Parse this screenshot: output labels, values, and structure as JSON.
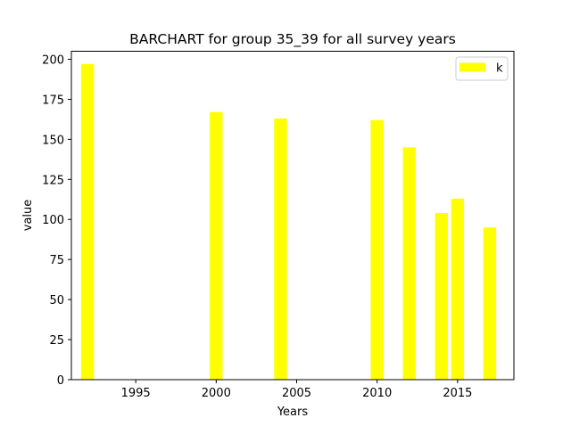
{
  "chart_data": {
    "type": "bar",
    "title": "BARCHART for group 35_39 for all survey years",
    "xlabel": "Years",
    "ylabel": "value",
    "x": [
      1992,
      2000,
      2004,
      2010,
      2012,
      2014,
      2015,
      2017
    ],
    "series": [
      {
        "name": "k",
        "color": "#ffff00",
        "values": [
          197,
          167,
          163,
          162,
          145,
          104,
          113,
          95
        ]
      }
    ],
    "xlim": [
      1991,
      2018.5
    ],
    "ylim": [
      0,
      205
    ],
    "bar_width": 0.8,
    "xticks": [
      1995,
      2000,
      2005,
      2010,
      2015
    ],
    "yticks": [
      0,
      25,
      50,
      75,
      100,
      125,
      150,
      175,
      200
    ],
    "grid": false,
    "legend_position": "top-right"
  }
}
